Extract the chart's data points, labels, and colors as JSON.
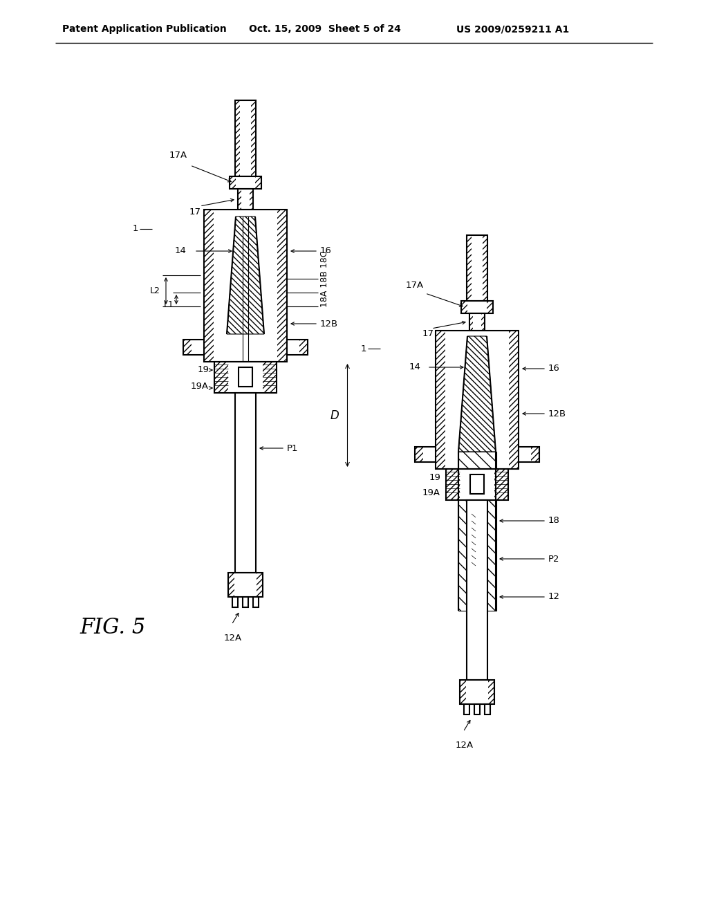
{
  "title": "FIG. 5",
  "header_left": "Patent Application Publication",
  "header_mid": "Oct. 15, 2009  Sheet 5 of 24",
  "header_right": "US 2009/0259211 A1",
  "background_color": "#ffffff",
  "line_color": "#000000",
  "fig_label": "FIG. 5",
  "labels": {
    "17A_left": "17A",
    "17_left": "17",
    "14_left": "14",
    "1_left": "1",
    "L2": "L2",
    "L1": "L1",
    "16_left": "16",
    "18A18B18C": "18A 18B 18C",
    "12B_left": "12B",
    "19_left": "19",
    "19A_left": "19A",
    "P1": "P1",
    "12A_left": "12A",
    "17A_right": "17A",
    "17_right": "17",
    "1_right": "1",
    "14_right": "14",
    "16_right": "16",
    "12B_right": "12B",
    "19_right": "19",
    "19A_right": "19A",
    "18_right": "18",
    "D": "D",
    "P2": "P2",
    "12_right": "12",
    "12A_right": "12A"
  }
}
